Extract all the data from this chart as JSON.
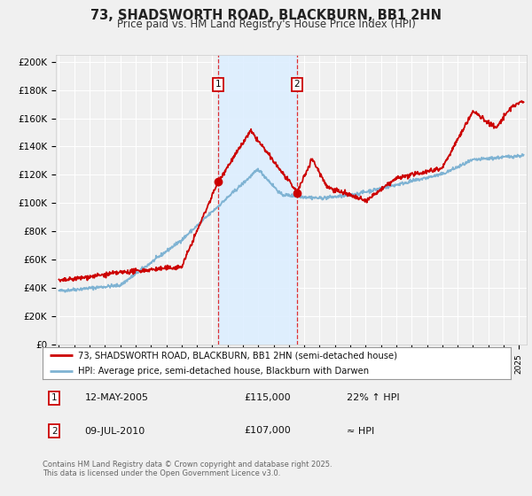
{
  "title": "73, SHADSWORTH ROAD, BLACKBURN, BB1 2HN",
  "subtitle": "Price paid vs. HM Land Registry's House Price Index (HPI)",
  "ylabel_ticks": [
    "£0",
    "£20K",
    "£40K",
    "£60K",
    "£80K",
    "£100K",
    "£120K",
    "£140K",
    "£160K",
    "£180K",
    "£200K"
  ],
  "ytick_values": [
    0,
    20000,
    40000,
    60000,
    80000,
    100000,
    120000,
    140000,
    160000,
    180000,
    200000
  ],
  "ylim": [
    0,
    205000
  ],
  "xlim_start": 1994.8,
  "xlim_end": 2025.5,
  "sale1_date": 2005.36,
  "sale1_price": 115000,
  "sale2_date": 2010.52,
  "sale2_price": 107000,
  "legend_line1": "73, SHADSWORTH ROAD, BLACKBURN, BB1 2HN (semi-detached house)",
  "legend_line2": "HPI: Average price, semi-detached house, Blackburn with Darwen",
  "footer": "Contains HM Land Registry data © Crown copyright and database right 2025.\nThis data is licensed under the Open Government Licence v3.0.",
  "line_color": "#cc0000",
  "hpi_color": "#7fb3d3",
  "shaded_color": "#ddeeff",
  "background_color": "#f0f0f0",
  "plot_bg_color": "#f0f0f0",
  "grid_color": "#ffffff"
}
